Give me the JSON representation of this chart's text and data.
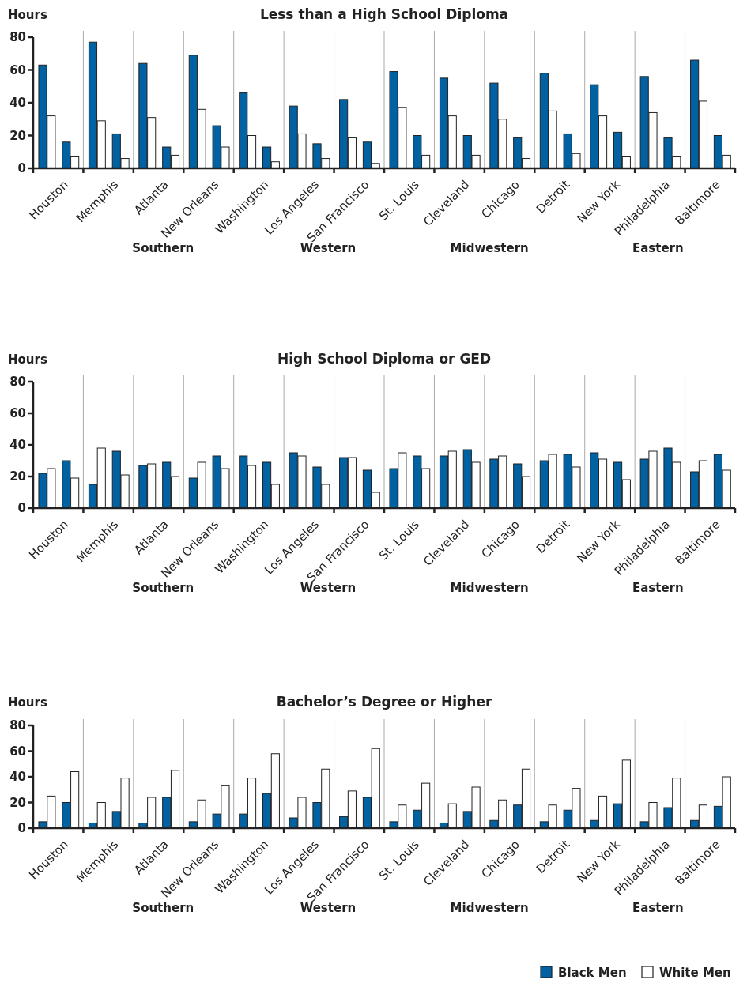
{
  "chart_data": [
    {
      "type": "bar",
      "title": "Less than a High School Diploma",
      "ylabel": "Hours",
      "categories": [
        "Houston",
        "Memphis",
        "Atlanta",
        "New Orleans",
        "Washington",
        "Los Angeles",
        "San Francisco",
        "St. Louis",
        "Cleveland",
        "Chicago",
        "Detroit",
        "New York",
        "Philadelphia",
        "Baltimore"
      ],
      "series": [
        {
          "color": "#0061a3",
          "values": [
            63,
            77,
            64,
            69,
            46,
            38,
            42,
            59,
            55,
            52,
            58,
            51,
            56,
            66
          ]
        },
        {
          "color": "#ffffff",
          "values": [
            32,
            29,
            31,
            36,
            20,
            21,
            19,
            37,
            32,
            30,
            35,
            32,
            34,
            41
          ]
        },
        {
          "color": "#0061a3",
          "values": [
            16,
            21,
            13,
            26,
            13,
            15,
            16,
            20,
            20,
            19,
            21,
            22,
            19,
            20
          ]
        },
        {
          "color": "#ffffff",
          "values": [
            7,
            6,
            8,
            13,
            4,
            6,
            3,
            8,
            8,
            6,
            9,
            7,
            7,
            8
          ]
        }
      ],
      "ylim": [
        0,
        80
      ],
      "yticks": [
        0,
        20,
        40,
        60,
        80
      ],
      "annotations": [
        "Southern",
        "Western",
        "Midwestern",
        "Eastern"
      ]
    },
    {
      "type": "bar",
      "title": "High School Diploma or GED",
      "ylabel": "Hours",
      "categories": [
        "Houston",
        "Memphis",
        "Atlanta",
        "New Orleans",
        "Washington",
        "Los Angeles",
        "San Francisco",
        "St. Louis",
        "Cleveland",
        "Chicago",
        "Detroit",
        "New York",
        "Philadelphia",
        "Baltimore"
      ],
      "series": [
        {
          "color": "#0061a3",
          "values": [
            22,
            15,
            27,
            19,
            33,
            35,
            32,
            25,
            33,
            31,
            30,
            35,
            31,
            23
          ]
        },
        {
          "color": "#ffffff",
          "values": [
            25,
            38,
            28,
            29,
            27,
            33,
            32,
            35,
            36,
            33,
            34,
            31,
            36,
            30
          ]
        },
        {
          "color": "#0061a3",
          "values": [
            30,
            36,
            29,
            33,
            29,
            26,
            24,
            33,
            37,
            28,
            34,
            29,
            38,
            34
          ]
        },
        {
          "color": "#ffffff",
          "values": [
            19,
            21,
            20,
            25,
            15,
            15,
            10,
            25,
            29,
            20,
            26,
            18,
            29,
            24
          ]
        }
      ],
      "ylim": [
        0,
        80
      ],
      "yticks": [
        0,
        20,
        40,
        60,
        80
      ],
      "annotations": [
        "Southern",
        "Western",
        "Midwestern",
        "Eastern"
      ]
    },
    {
      "type": "bar",
      "title": "Bachelor’s Degree or Higher",
      "ylabel": "Hours",
      "categories": [
        "Houston",
        "Memphis",
        "Atlanta",
        "New Orleans",
        "Washington",
        "Los Angeles",
        "San Francisco",
        "St. Louis",
        "Cleveland",
        "Chicago",
        "Detroit",
        "New York",
        "Philadelphia",
        "Baltimore"
      ],
      "series": [
        {
          "name": "Black Men",
          "color": "#0061a3",
          "values": [
            5,
            4,
            4,
            5,
            11,
            8,
            9,
            5,
            4,
            6,
            5,
            6,
            5,
            6
          ]
        },
        {
          "name": "White Men",
          "color": "#ffffff",
          "values": [
            25,
            20,
            24,
            22,
            39,
            24,
            29,
            18,
            19,
            22,
            18,
            25,
            20,
            18
          ]
        },
        {
          "color": "#0061a3",
          "values": [
            20,
            13,
            24,
            11,
            27,
            20,
            24,
            14,
            13,
            18,
            14,
            19,
            16,
            17
          ]
        },
        {
          "color": "#ffffff",
          "values": [
            44,
            39,
            45,
            33,
            58,
            46,
            62,
            35,
            32,
            46,
            31,
            53,
            39,
            40
          ]
        }
      ],
      "ylim": [
        0,
        80
      ],
      "yticks": [
        0,
        20,
        40,
        60,
        80
      ],
      "annotations": [
        "Southern",
        "Western",
        "Midwestern",
        "Eastern"
      ],
      "legend": "bottom right"
    }
  ]
}
